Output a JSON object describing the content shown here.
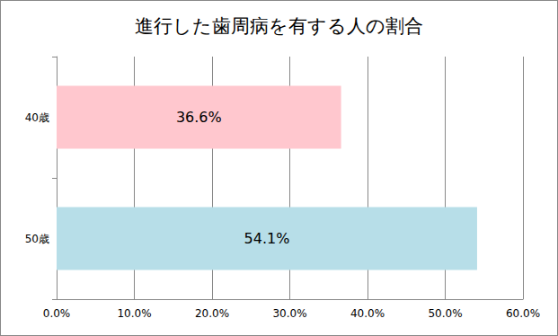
{
  "chart_data": {
    "type": "bar",
    "title": "進行した歯周病を有する人の割合",
    "orientation": "horizontal",
    "categories": [
      "40歳",
      "50歳"
    ],
    "values": [
      36.6,
      54.1
    ],
    "value_labels": [
      "36.6%",
      "54.1%"
    ],
    "colors": [
      "#ffc7ce",
      "#b7dee8"
    ],
    "data_labels": true,
    "xlim": [
      0,
      60
    ],
    "xticks": [
      {
        "value": 0,
        "label": "0.0%"
      },
      {
        "value": 10,
        "label": "10.0%"
      },
      {
        "value": 20,
        "label": "20.0%"
      },
      {
        "value": 30,
        "label": "30.0%"
      },
      {
        "value": 40,
        "label": "40.0%"
      },
      {
        "value": 50,
        "label": "50.0%"
      },
      {
        "value": 60,
        "label": "60.0%"
      }
    ],
    "grid": true
  }
}
